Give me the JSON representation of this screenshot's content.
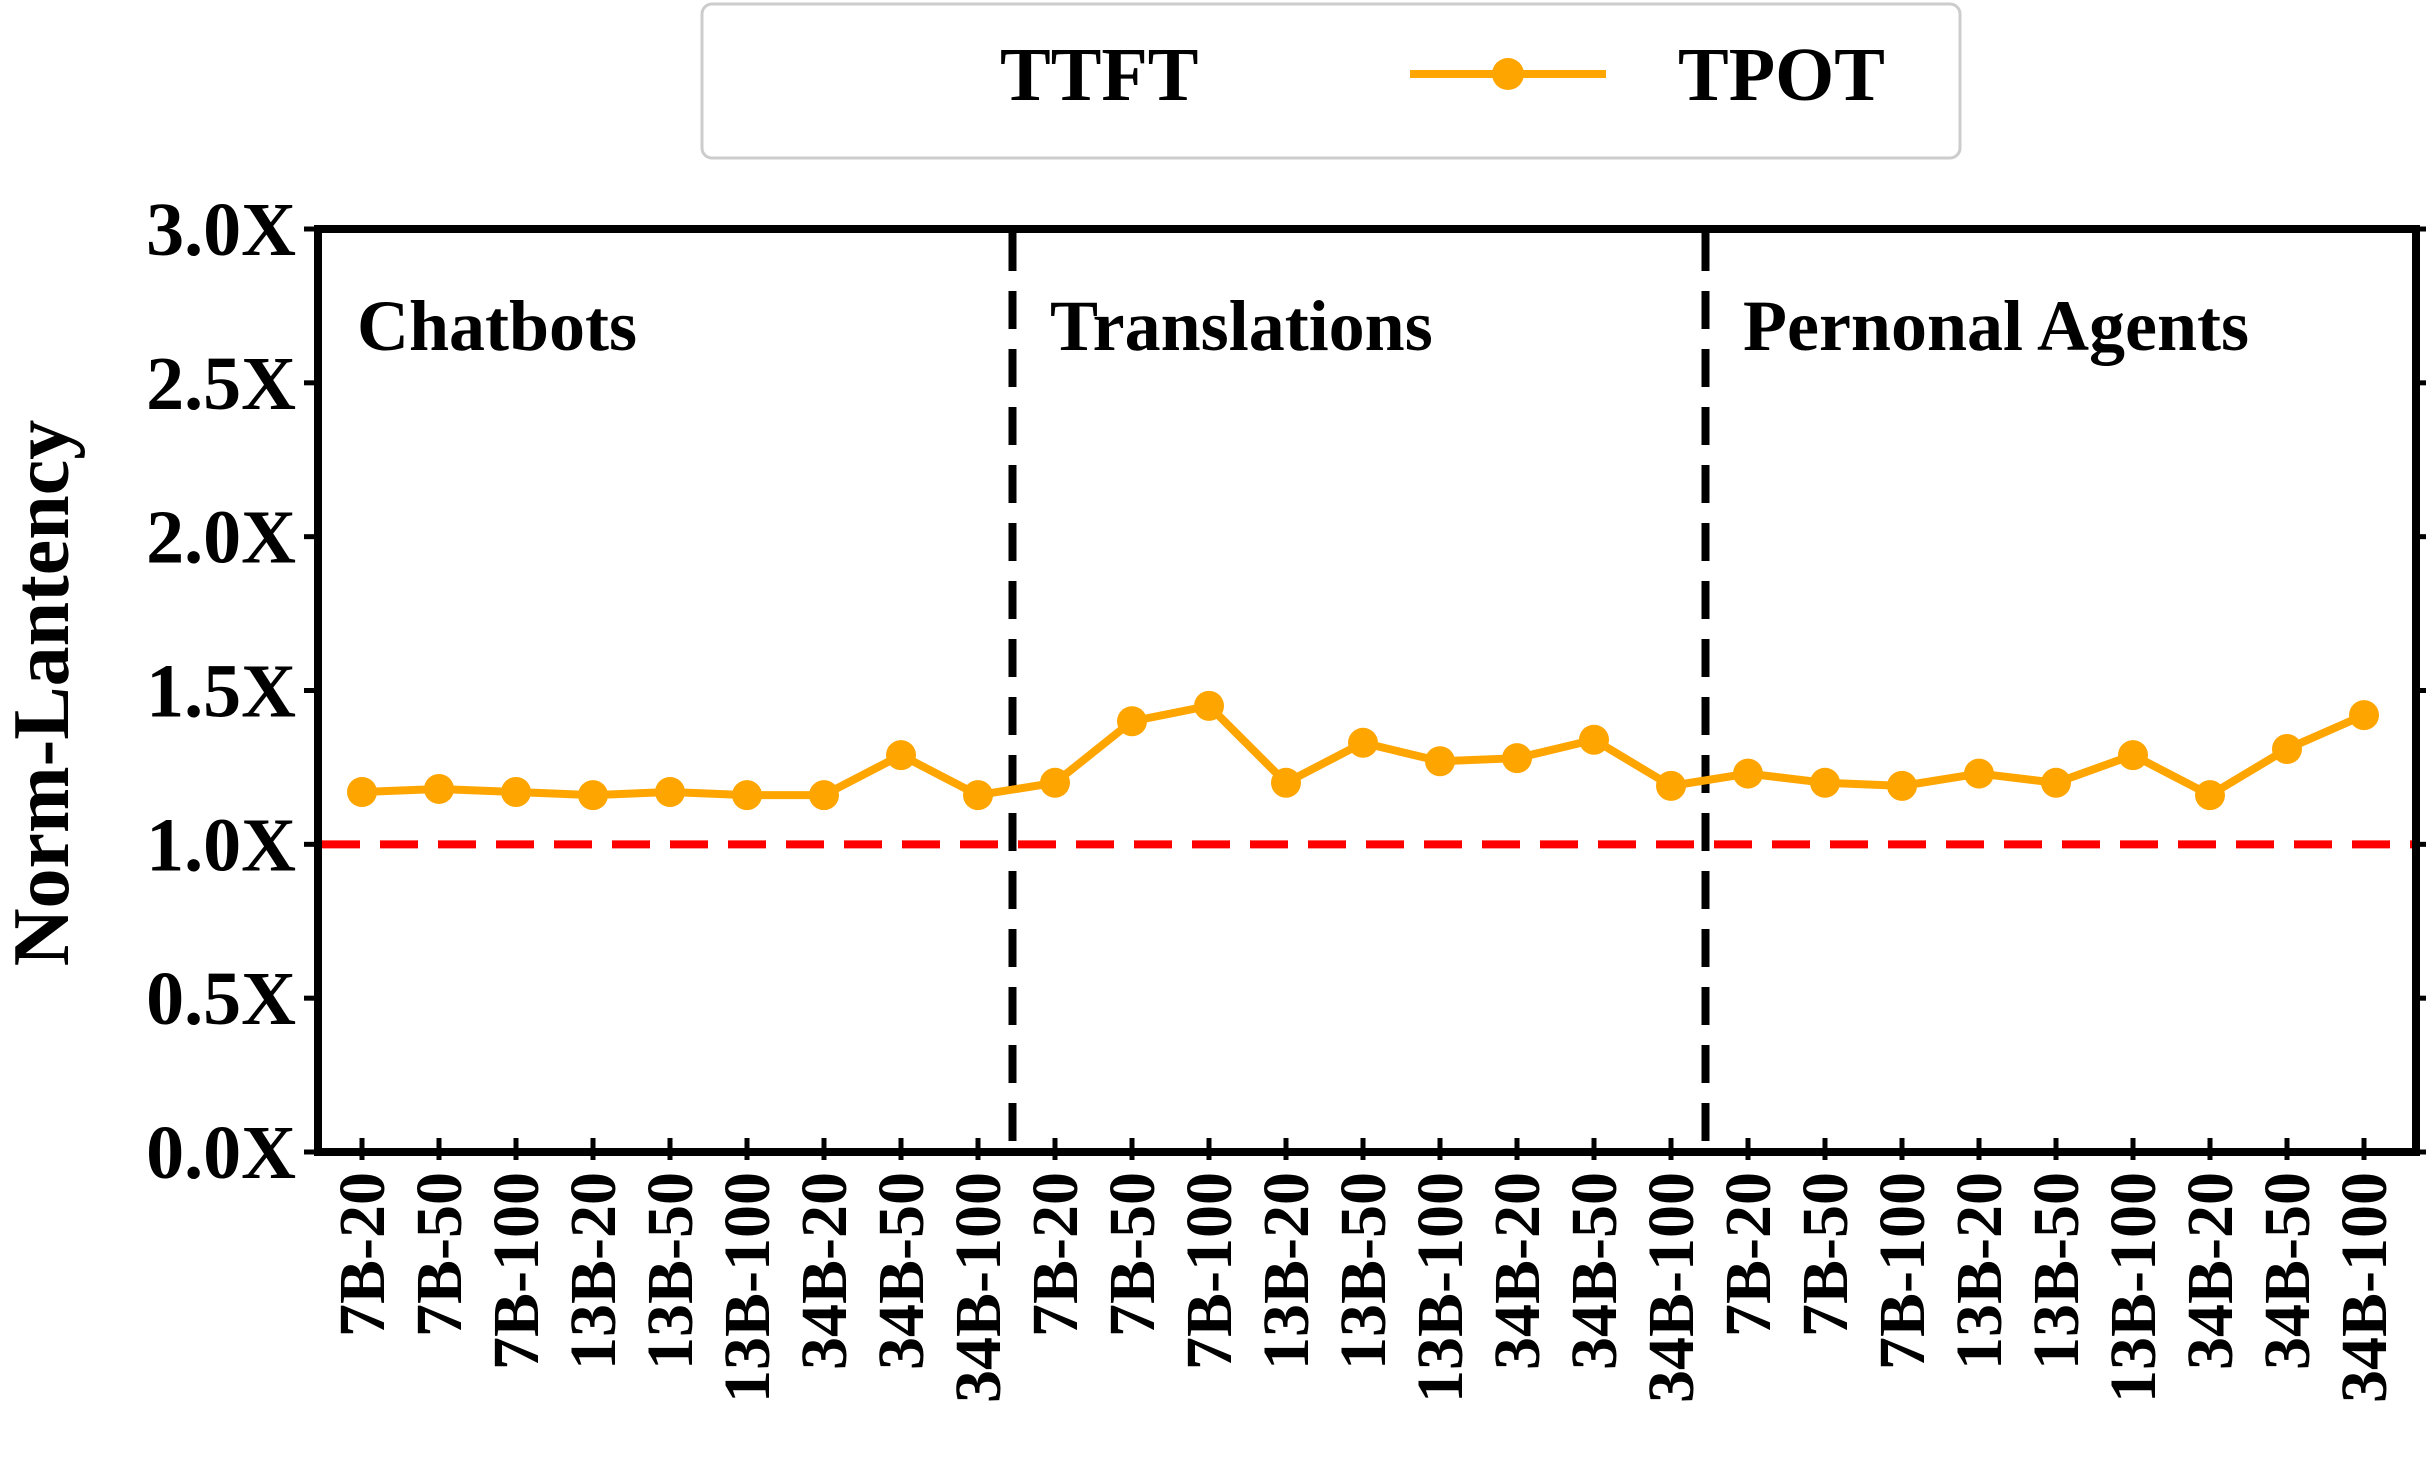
{
  "chart_data": {
    "type": "line",
    "ylabel": "Norm-Lantency",
    "ylim": [
      0,
      3
    ],
    "yticks": [
      "0.0X",
      "0.5X",
      "1.0X",
      "1.5X",
      "2.0X",
      "2.5X",
      "3.0X"
    ],
    "reference_line": {
      "y": 1.0,
      "color": "#ff0000",
      "style": "dashed"
    },
    "legend": {
      "placement": "top-center, outside plot",
      "entries": [
        {
          "name": "TTFT"
        },
        {
          "name": "TPOT",
          "color": "#ffa500",
          "marker": "circle"
        }
      ]
    },
    "sections": [
      {
        "label": "Chatbots"
      },
      {
        "label": "Translations"
      },
      {
        "label": "Pernonal Agents"
      }
    ],
    "categories": [
      "7B-20",
      "7B-50",
      "7B-100",
      "13B-20",
      "13B-50",
      "13B-100",
      "34B-20",
      "34B-50",
      "34B-100",
      "7B-20",
      "7B-50",
      "7B-100",
      "13B-20",
      "13B-50",
      "13B-100",
      "34B-20",
      "34B-50",
      "34B-100",
      "7B-20",
      "7B-50",
      "7B-100",
      "13B-20",
      "13B-50",
      "13B-100",
      "34B-20",
      "34B-50",
      "34B-100"
    ],
    "series": [
      {
        "name": "TPOT",
        "color": "#ffa500",
        "values": [
          1.17,
          1.18,
          1.17,
          1.16,
          1.17,
          1.16,
          1.16,
          1.29,
          1.16,
          1.2,
          1.4,
          1.45,
          1.2,
          1.33,
          1.27,
          1.28,
          1.34,
          1.19,
          1.23,
          1.2,
          1.19,
          1.23,
          1.2,
          1.29,
          1.16,
          1.31,
          1.42
        ]
      }
    ]
  }
}
